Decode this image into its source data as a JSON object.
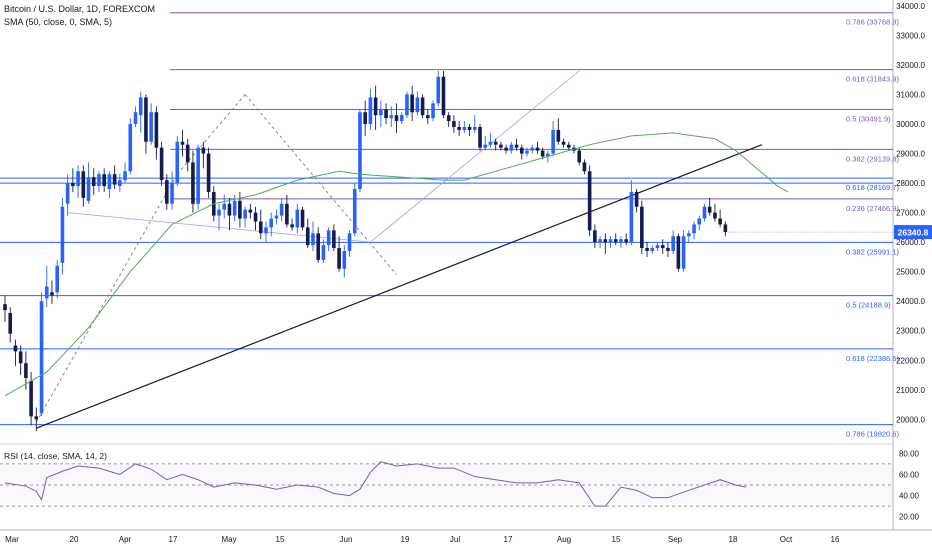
{
  "header": {
    "title": "Bitcoin / U.S. Dollar, 1D, FOREXCOM",
    "sma_label": "SMA (50, close, 0, SMA, 5)",
    "rsi_label": "RSI (14, close, SMA, 14, 2)"
  },
  "colors": {
    "up": "#2962ff",
    "down": "#131c4f",
    "fib_upper": "#7e57c2",
    "fib_lower": "#2962ff",
    "sma": "#4caf50",
    "trendline": "#131722",
    "rsi": "#7e57c2",
    "price_label_bg": "#2962ff"
  },
  "chart_data": [
    {
      "type": "candlestick",
      "title": "Bitcoin / U.S. Dollar, 1D, FOREXCOM",
      "x_ticks": [
        "Mar",
        "20",
        "Apr",
        "17",
        "May",
        "15",
        "Jun",
        "19",
        "Jul",
        "17",
        "Aug",
        "15",
        "Sep",
        "18",
        "Oct",
        "16"
      ],
      "y_ticks": [
        "34000.0",
        "33000.0",
        "32000.0",
        "31000.0",
        "30000.0",
        "29000.0",
        "28000.0",
        "27000.0",
        "26000.0",
        "25000.0",
        "24000.0",
        "23000.0",
        "22000.0",
        "21000.0",
        "20000.0"
      ],
      "ylim": [
        19300,
        34200
      ],
      "last_price": "26340.8",
      "candles": [
        [
          23900,
          24200,
          23300,
          23700
        ],
        [
          23600,
          23800,
          22600,
          22900
        ],
        [
          22500,
          22700,
          21800,
          22300
        ],
        [
          22300,
          22500,
          21500,
          21900
        ],
        [
          21900,
          22300,
          21000,
          21400
        ],
        [
          21300,
          21600,
          19800,
          20100
        ],
        [
          20100,
          20400,
          19600,
          20000
        ],
        [
          20200,
          24300,
          20100,
          24000
        ],
        [
          24100,
          25200,
          23800,
          24500
        ],
        [
          24300,
          24700,
          23900,
          24200
        ],
        [
          24300,
          25400,
          24100,
          25200
        ],
        [
          25300,
          27500,
          24900,
          27200
        ],
        [
          27300,
          28300,
          26900,
          28000
        ],
        [
          28000,
          28500,
          27700,
          27900
        ],
        [
          27900,
          28600,
          27500,
          28400
        ],
        [
          28400,
          28600,
          27200,
          27500
        ],
        [
          27400,
          28700,
          27300,
          28200
        ],
        [
          28200,
          28500,
          27600,
          27900
        ],
        [
          27900,
          28400,
          27700,
          28300
        ],
        [
          28300,
          28500,
          27700,
          27900
        ],
        [
          27800,
          28400,
          27500,
          28300
        ],
        [
          28300,
          28600,
          27800,
          27950
        ],
        [
          27900,
          28300,
          27700,
          28100
        ],
        [
          28100,
          28700,
          28000,
          28400
        ],
        [
          28400,
          30200,
          28300,
          30000
        ],
        [
          30000,
          30600,
          29900,
          30400
        ],
        [
          30300,
          31100,
          29700,
          30900
        ],
        [
          30900,
          31000,
          29000,
          29400
        ],
        [
          29400,
          30700,
          29300,
          30400
        ],
        [
          30400,
          30600,
          28800,
          29200
        ],
        [
          29200,
          29400,
          27900,
          28100
        ],
        [
          28100,
          28300,
          27100,
          27300
        ],
        [
          27300,
          28400,
          27100,
          28000
        ],
        [
          28000,
          29600,
          27900,
          29400
        ],
        [
          29400,
          29800,
          28900,
          29300
        ],
        [
          29300,
          29500,
          28400,
          28700
        ],
        [
          28700,
          29100,
          27000,
          27300
        ],
        [
          27300,
          29300,
          27100,
          29200
        ],
        [
          29200,
          29400,
          28500,
          29000
        ],
        [
          29000,
          29200,
          27500,
          27700
        ],
        [
          27700,
          27900,
          26700,
          26900
        ],
        [
          26900,
          27300,
          26400,
          27100
        ],
        [
          27100,
          27600,
          26800,
          27300
        ],
        [
          27300,
          27500,
          26400,
          26900
        ],
        [
          26900,
          27600,
          26700,
          27400
        ],
        [
          27400,
          27700,
          26500,
          26800
        ],
        [
          26800,
          27200,
          26500,
          27100
        ],
        [
          27100,
          27300,
          26800,
          27000
        ],
        [
          27000,
          27200,
          26400,
          26700
        ],
        [
          26700,
          27100,
          26100,
          26300
        ],
        [
          26300,
          26700,
          26000,
          26500
        ],
        [
          26500,
          27000,
          26200,
          26800
        ],
        [
          26800,
          27100,
          26600,
          26900
        ],
        [
          26900,
          27500,
          26700,
          27300
        ],
        [
          27300,
          27600,
          26500,
          26600
        ],
        [
          26600,
          26800,
          26400,
          26500
        ],
        [
          26500,
          27300,
          26300,
          27100
        ],
        [
          27100,
          27200,
          26400,
          26500
        ],
        [
          26500,
          26800,
          25800,
          25900
        ],
        [
          25900,
          26700,
          25700,
          26300
        ],
        [
          26300,
          26500,
          25300,
          25400
        ],
        [
          25400,
          26100,
          25300,
          25900
        ],
        [
          25900,
          26500,
          25700,
          26400
        ],
        [
          26400,
          26600,
          25700,
          25800
        ],
        [
          25800,
          26200,
          25000,
          25100
        ],
        [
          25100,
          25900,
          24800,
          25700
        ],
        [
          25700,
          26400,
          25500,
          26300
        ],
        [
          26300,
          28000,
          26200,
          27800
        ],
        [
          27800,
          30500,
          27700,
          30400
        ],
        [
          30400,
          30800,
          29600,
          30000
        ],
        [
          30000,
          31200,
          29800,
          30900
        ],
        [
          30900,
          31300,
          29800,
          30300
        ],
        [
          30300,
          30800,
          29900,
          30500
        ],
        [
          30500,
          30700,
          30000,
          30200
        ],
        [
          30200,
          30600,
          29900,
          30300
        ],
        [
          30300,
          30700,
          29700,
          30100
        ],
        [
          30100,
          30400,
          30000,
          30300
        ],
        [
          30300,
          31100,
          30200,
          31000
        ],
        [
          31000,
          31300,
          30100,
          30400
        ],
        [
          30400,
          31100,
          30300,
          30900
        ],
        [
          30900,
          31000,
          30200,
          30300
        ],
        [
          30300,
          30500,
          30000,
          30200
        ],
        [
          30200,
          30800,
          30100,
          30700
        ],
        [
          30700,
          31800,
          30600,
          31600
        ],
        [
          31600,
          31800,
          30200,
          30300
        ],
        [
          30300,
          30400,
          29900,
          30100
        ],
        [
          30100,
          30300,
          29700,
          29900
        ],
        [
          29900,
          30100,
          29600,
          29800
        ],
        [
          29800,
          30100,
          29700,
          29900
        ],
        [
          29900,
          30000,
          29600,
          29800
        ],
        [
          29800,
          30300,
          29700,
          29900
        ],
        [
          29900,
          30000,
          29100,
          29200
        ],
        [
          29200,
          29600,
          29100,
          29300
        ],
        [
          29300,
          29700,
          29200,
          29400
        ],
        [
          29400,
          29500,
          29100,
          29300
        ],
        [
          29300,
          29400,
          29100,
          29200
        ],
        [
          29200,
          29300,
          29000,
          29100
        ],
        [
          29100,
          29400,
          29000,
          29300
        ],
        [
          29300,
          29500,
          29100,
          29200
        ],
        [
          29200,
          29300,
          28800,
          29000
        ],
        [
          29000,
          29200,
          28900,
          29100
        ],
        [
          29100,
          29300,
          29000,
          29200
        ],
        [
          29200,
          29400,
          29000,
          29100
        ],
        [
          29100,
          29200,
          28800,
          28900
        ],
        [
          28900,
          29100,
          28700,
          29000
        ],
        [
          29000,
          30100,
          28900,
          29800
        ],
        [
          29800,
          30200,
          29300,
          29400
        ],
        [
          29400,
          29500,
          29200,
          29300
        ],
        [
          29300,
          29400,
          29100,
          29200
        ],
        [
          29200,
          29300,
          29000,
          29100
        ],
        [
          29100,
          29200,
          28600,
          28700
        ],
        [
          28700,
          28800,
          28300,
          28400
        ],
        [
          28400,
          28600,
          26200,
          26400
        ],
        [
          26400,
          26600,
          25800,
          26000
        ],
        [
          26000,
          26200,
          25800,
          26100
        ],
        [
          26100,
          26300,
          25600,
          26000
        ],
        [
          26000,
          26200,
          25800,
          26100
        ],
        [
          26100,
          26300,
          25900,
          26000
        ],
        [
          26000,
          26200,
          25800,
          26100
        ],
        [
          26100,
          26300,
          25900,
          26000
        ],
        [
          26000,
          28100,
          25900,
          27700
        ],
        [
          27700,
          27800,
          27000,
          27200
        ],
        [
          27200,
          27400,
          25600,
          25800
        ],
        [
          25800,
          26000,
          25500,
          25700
        ],
        [
          25700,
          25900,
          25600,
          25800
        ],
        [
          25800,
          26000,
          25700,
          25900
        ],
        [
          25900,
          26100,
          25600,
          25800
        ],
        [
          25800,
          26000,
          25500,
          25700
        ],
        [
          25700,
          26400,
          25600,
          26200
        ],
        [
          26200,
          26300,
          25000,
          25100
        ],
        [
          25100,
          26400,
          25000,
          26200
        ],
        [
          26200,
          26400,
          26000,
          26300
        ],
        [
          26300,
          26700,
          26100,
          26600
        ],
        [
          26600,
          26900,
          26400,
          26800
        ],
        [
          26800,
          27300,
          26700,
          27200
        ],
        [
          27200,
          27500,
          26900,
          27000
        ],
        [
          27000,
          27300,
          26700,
          26800
        ],
        [
          26800,
          27100,
          26500,
          26600
        ],
        [
          26600,
          26700,
          26200,
          26340.8
        ]
      ],
      "sma": [
        [
          0,
          20800
        ],
        [
          8,
          21600
        ],
        [
          16,
          23100
        ],
        [
          24,
          25000
        ],
        [
          32,
          26600
        ],
        [
          40,
          27300
        ],
        [
          48,
          27600
        ],
        [
          56,
          28100
        ],
        [
          64,
          28400
        ],
        [
          68,
          28300
        ],
        [
          72,
          28250
        ],
        [
          80,
          28150
        ],
        [
          84,
          28100
        ],
        [
          88,
          28100
        ],
        [
          96,
          28500
        ],
        [
          104,
          28900
        ],
        [
          112,
          29300
        ],
        [
          120,
          29600
        ],
        [
          128,
          29700
        ],
        [
          132,
          29600
        ],
        [
          136,
          29500
        ],
        [
          140,
          29100
        ],
        [
          144,
          28500
        ],
        [
          148,
          27900
        ],
        [
          150,
          27700
        ]
      ],
      "fib_upper": [
        {
          "label": "0.786 (33768.9)",
          "value": 33768.9
        },
        {
          "label": "0.618 (31843.9)",
          "value": 31843.9
        },
        {
          "label": "0.5 (30491.9)",
          "value": 30491.9
        },
        {
          "label": "0.382 (29139.8)",
          "value": 29139.8
        },
        {
          "label": "0.236 (27466.9)",
          "value": 27466.9
        }
      ],
      "fib_lower": [
        {
          "label": "0.618 (28169.7)",
          "value": 28169.7
        },
        {
          "label": "0.382 (25991.1)",
          "value": 25991.1
        },
        {
          "label": "0.5 (24188.9)",
          "value": 24188.9
        },
        {
          "label": "0.618 (22386.6)",
          "value": 22386.6
        },
        {
          "label": "0.786 (19820.6)",
          "value": 19820.6
        }
      ],
      "fib_lower_extra_line": 28000,
      "trendline": {
        "from": [
          6,
          19700
        ],
        "to": [
          145,
          29300
        ]
      },
      "dashed_lines": [
        [
          6,
          19900,
          33,
          28300
        ],
        [
          33,
          28300,
          46,
          31000
        ],
        [
          46,
          31000,
          75,
          24900
        ]
      ],
      "dotted_lines": [
        [
          12,
          27000,
          70,
          26000
        ],
        [
          70,
          26000,
          110,
          31800
        ]
      ]
    },
    {
      "type": "line",
      "title": "RSI (14, close, SMA, 14, 2)",
      "y_ticks": [
        "80.00",
        "60.00",
        "40.00",
        "20.00"
      ],
      "ylim": [
        15,
        85
      ],
      "bands": [
        70,
        50,
        30
      ],
      "rsi": [
        [
          0,
          52
        ],
        [
          4,
          49
        ],
        [
          6,
          44
        ],
        [
          7,
          36
        ],
        [
          8,
          57
        ],
        [
          11,
          63
        ],
        [
          14,
          68
        ],
        [
          18,
          66
        ],
        [
          22,
          60
        ],
        [
          25,
          70
        ],
        [
          28,
          65
        ],
        [
          31,
          55
        ],
        [
          34,
          60
        ],
        [
          37,
          55
        ],
        [
          40,
          48
        ],
        [
          44,
          52
        ],
        [
          48,
          50
        ],
        [
          52,
          46
        ],
        [
          56,
          50
        ],
        [
          60,
          48
        ],
        [
          63,
          42
        ],
        [
          66,
          40
        ],
        [
          68,
          46
        ],
        [
          70,
          62
        ],
        [
          72,
          72
        ],
        [
          75,
          68
        ],
        [
          79,
          70
        ],
        [
          83,
          66
        ],
        [
          86,
          66
        ],
        [
          90,
          58
        ],
        [
          94,
          55
        ],
        [
          98,
          52
        ],
        [
          102,
          52
        ],
        [
          106,
          55
        ],
        [
          110,
          52
        ],
        [
          113,
          30
        ],
        [
          115,
          30
        ],
        [
          118,
          48
        ],
        [
          121,
          45
        ],
        [
          124,
          38
        ],
        [
          127,
          38
        ],
        [
          131,
          45
        ],
        [
          134,
          50
        ],
        [
          137,
          55
        ],
        [
          140,
          50
        ],
        [
          142,
          48
        ]
      ]
    }
  ]
}
